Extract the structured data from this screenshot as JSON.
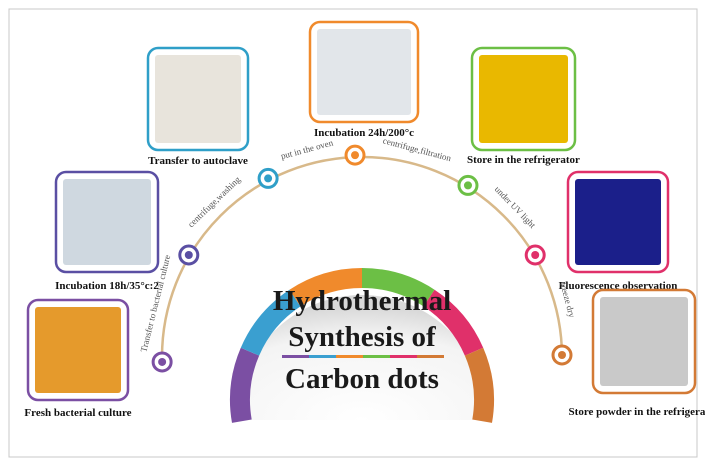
{
  "title": [
    "Hydrothermal",
    "Synthesis of",
    "Carbon dots"
  ],
  "nodes": [
    {
      "label": "Fresh bacterial culture"
    },
    {
      "label": "Incubation 18h/35°c:2"
    },
    {
      "label": "Transfer to autoclave"
    },
    {
      "label": "Incubation   24h/200°c"
    },
    {
      "label": "Store in the refrigerator"
    },
    {
      "label": "Fluorescence observation"
    },
    {
      "label": "Store powder in the refrigerator"
    }
  ],
  "edges": [
    {
      "label": "Transfer to bacterial culture"
    },
    {
      "label": "centrifuge,washing"
    },
    {
      "label": "put in the oven"
    },
    {
      "label": "centrifuge,filtration"
    },
    {
      "label": "under UV light"
    },
    {
      "label": "freeze dry"
    }
  ]
}
